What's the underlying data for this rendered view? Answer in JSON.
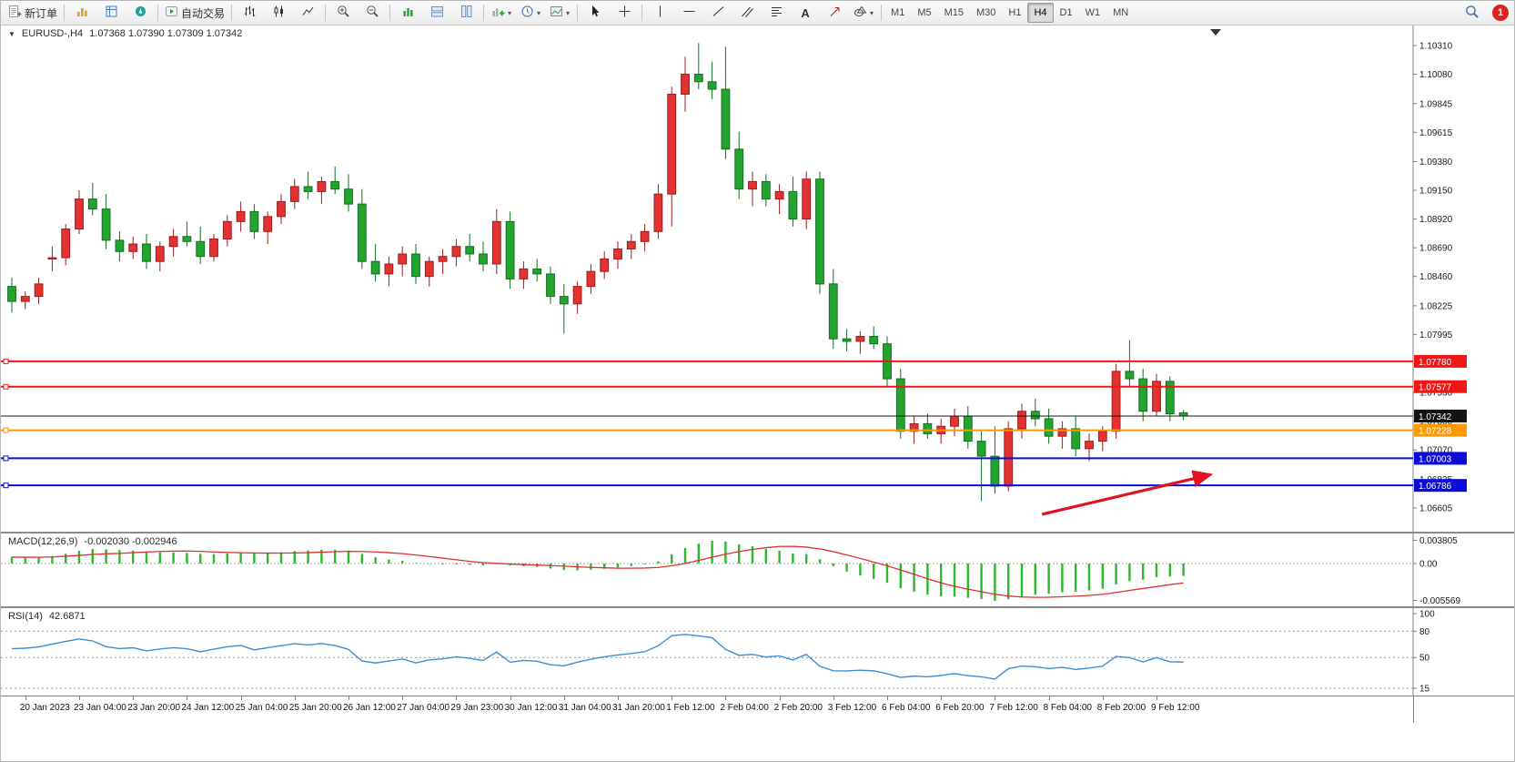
{
  "toolbar": {
    "new_order_label": "新订单",
    "autotrading_label": "自动交易",
    "timeframes": [
      "M1",
      "M5",
      "M15",
      "M30",
      "H1",
      "H4",
      "D1",
      "W1",
      "MN"
    ],
    "active_timeframe": "H4",
    "notification_count": "1"
  },
  "main_pane": {
    "collapse_icon": "▼",
    "symbol_period": "EURUSD-,H4",
    "quotes": "1.07368 1.07390 1.07309 1.07342"
  },
  "macd_pane": {
    "title": "MACD(12,26,9)",
    "values": "-0.002030 -0.002946",
    "axis_labels": [
      "0.003805",
      "0.00",
      "-0.005569"
    ]
  },
  "rsi_pane": {
    "title": "RSI(14)",
    "value": "42.6871",
    "axis_labels": [
      "100",
      "80",
      "50",
      "15"
    ]
  },
  "chart_data": {
    "type": "candlestick",
    "symbol": "EURUSD",
    "period": "H4",
    "y_axis_labels": [
      "1.10310",
      "1.10080",
      "1.09845",
      "1.09615",
      "1.09380",
      "1.09150",
      "1.08920",
      "1.08690",
      "1.08460",
      "1.08225",
      "1.07995",
      "1.07760",
      "1.07530",
      "1.07300",
      "1.07070",
      "1.06835",
      "1.06605"
    ],
    "x_labels": [
      "20 Jan 2023",
      "23 Jan 04:00",
      "23 Jan 20:00",
      "24 Jan 12:00",
      "25 Jan 04:00",
      "25 Jan 20:00",
      "26 Jan 12:00",
      "27 Jan 04:00",
      "29 Jan 23:00",
      "30 Jan 12:00",
      "31 Jan 04:00",
      "31 Jan 20:00",
      "1 Feb 12:00",
      "2 Feb 04:00",
      "2 Feb 20:00",
      "3 Feb 12:00",
      "6 Feb 04:00",
      "6 Feb 20:00",
      "7 Feb 12:00",
      "8 Feb 04:00",
      "8 Feb 20:00",
      "9 Feb 12:00"
    ],
    "candles": [
      [
        1.0838,
        1.0845,
        1.0817,
        1.0826
      ],
      [
        1.0826,
        1.0834,
        1.082,
        1.083
      ],
      [
        1.083,
        1.0845,
        1.0824,
        1.084
      ],
      [
        1.086,
        1.087,
        1.085,
        1.0861
      ],
      [
        1.0861,
        1.0888,
        1.0855,
        1.0884
      ],
      [
        1.0884,
        1.0915,
        1.088,
        1.0908
      ],
      [
        1.0908,
        1.0921,
        1.0895,
        1.09
      ],
      [
        1.09,
        1.0912,
        1.0868,
        1.0875
      ],
      [
        1.0875,
        1.0882,
        1.0858,
        1.0866
      ],
      [
        1.0866,
        1.0878,
        1.086,
        1.0872
      ],
      [
        1.0872,
        1.088,
        1.0852,
        1.0858
      ],
      [
        1.0858,
        1.0874,
        1.085,
        1.087
      ],
      [
        1.087,
        1.0884,
        1.0862,
        1.0878
      ],
      [
        1.0878,
        1.089,
        1.087,
        1.0874
      ],
      [
        1.0874,
        1.0886,
        1.0856,
        1.0862
      ],
      [
        1.0862,
        1.088,
        1.0858,
        1.0876
      ],
      [
        1.0876,
        1.0895,
        1.087,
        1.089
      ],
      [
        1.089,
        1.0906,
        1.0882,
        1.0898
      ],
      [
        1.0898,
        1.0904,
        1.0876,
        1.0882
      ],
      [
        1.0882,
        1.0898,
        1.0872,
        1.0894
      ],
      [
        1.0894,
        1.0912,
        1.0888,
        1.0906
      ],
      [
        1.0906,
        1.0924,
        1.09,
        1.0918
      ],
      [
        1.0918,
        1.093,
        1.0908,
        1.0914
      ],
      [
        1.0914,
        1.0926,
        1.0904,
        1.0922
      ],
      [
        1.0922,
        1.0934,
        1.0912,
        1.0916
      ],
      [
        1.0916,
        1.0928,
        1.0898,
        1.0904
      ],
      [
        1.0904,
        1.0916,
        1.0852,
        1.0858
      ],
      [
        1.0858,
        1.0872,
        1.0842,
        1.0848
      ],
      [
        1.0848,
        1.0862,
        1.0838,
        1.0856
      ],
      [
        1.0856,
        1.087,
        1.0846,
        1.0864
      ],
      [
        1.0864,
        1.0872,
        1.084,
        1.0846
      ],
      [
        1.0846,
        1.0862,
        1.0838,
        1.0858
      ],
      [
        1.0858,
        1.0868,
        1.0848,
        1.0862
      ],
      [
        1.0862,
        1.0876,
        1.0854,
        1.087
      ],
      [
        1.087,
        1.088,
        1.0858,
        1.0864
      ],
      [
        1.0864,
        1.0874,
        1.085,
        1.0856
      ],
      [
        1.0856,
        1.09,
        1.0848,
        1.089
      ],
      [
        1.089,
        1.0898,
        1.0836,
        1.0844
      ],
      [
        1.0844,
        1.0858,
        1.0836,
        1.0852
      ],
      [
        1.0852,
        1.086,
        1.0842,
        1.0848
      ],
      [
        1.0848,
        1.0854,
        1.0824,
        1.083
      ],
      [
        1.083,
        1.084,
        1.08,
        1.0824
      ],
      [
        1.0824,
        1.0842,
        1.0816,
        1.0838
      ],
      [
        1.0838,
        1.0856,
        1.0832,
        1.085
      ],
      [
        1.085,
        1.0866,
        1.0844,
        1.086
      ],
      [
        1.086,
        1.0874,
        1.0852,
        1.0868
      ],
      [
        1.0868,
        1.088,
        1.086,
        1.0874
      ],
      [
        1.0874,
        1.0888,
        1.0866,
        1.0882
      ],
      [
        1.0882,
        1.092,
        1.0876,
        1.0912
      ],
      [
        1.0912,
        1.0998,
        1.0886,
        1.0992
      ],
      [
        1.0992,
        1.1022,
        1.0978,
        1.1008
      ],
      [
        1.1008,
        1.1033,
        1.0996,
        1.1002
      ],
      [
        1.1002,
        1.1018,
        1.0988,
        1.0996
      ],
      [
        1.0996,
        1.103,
        1.094,
        1.0948
      ],
      [
        1.0948,
        1.0962,
        1.0908,
        1.0916
      ],
      [
        1.0916,
        1.093,
        1.0902,
        1.0922
      ],
      [
        1.0922,
        1.0928,
        1.0902,
        1.0908
      ],
      [
        1.0908,
        1.092,
        1.0896,
        1.0914
      ],
      [
        1.0914,
        1.0926,
        1.0886,
        1.0892
      ],
      [
        1.0892,
        1.093,
        1.0884,
        1.0924
      ],
      [
        1.0924,
        1.093,
        1.0832,
        1.084
      ],
      [
        1.084,
        1.0852,
        1.0788,
        1.0796
      ],
      [
        1.0796,
        1.0804,
        1.0786,
        1.0794
      ],
      [
        1.0794,
        1.0802,
        1.0784,
        1.0798
      ],
      [
        1.0798,
        1.0806,
        1.0788,
        1.0792
      ],
      [
        1.0792,
        1.0798,
        1.0758,
        1.0764
      ],
      [
        1.0764,
        1.0772,
        1.0716,
        1.0722
      ],
      [
        1.0722,
        1.0734,
        1.0712,
        1.0728
      ],
      [
        1.0728,
        1.0736,
        1.0716,
        1.072
      ],
      [
        1.072,
        1.0732,
        1.0712,
        1.0726
      ],
      [
        1.0726,
        1.074,
        1.0718,
        1.0734
      ],
      [
        1.0734,
        1.0742,
        1.0708,
        1.0714
      ],
      [
        1.0714,
        1.0722,
        1.0666,
        1.0702
      ],
      [
        1.0702,
        1.0726,
        1.0672,
        1.0678
      ],
      [
        1.0678,
        1.073,
        1.0674,
        1.0724
      ],
      [
        1.0724,
        1.0744,
        1.0716,
        1.0738
      ],
      [
        1.0738,
        1.0748,
        1.0726,
        1.0732
      ],
      [
        1.0732,
        1.074,
        1.0712,
        1.0718
      ],
      [
        1.0718,
        1.073,
        1.0708,
        1.0724
      ],
      [
        1.0724,
        1.0734,
        1.0702,
        1.0708
      ],
      [
        1.0708,
        1.072,
        1.0698,
        1.0714
      ],
      [
        1.0714,
        1.0726,
        1.0706,
        1.0722
      ],
      [
        1.0722,
        1.0776,
        1.0716,
        1.077
      ],
      [
        1.077,
        1.0795,
        1.0758,
        1.0764
      ],
      [
        1.0764,
        1.0772,
        1.073,
        1.0738
      ],
      [
        1.0738,
        1.0768,
        1.0734,
        1.0762
      ],
      [
        1.0762,
        1.0766,
        1.073,
        1.0736
      ],
      [
        1.07368,
        1.0739,
        1.07309,
        1.07342
      ]
    ],
    "horizontal_lines": [
      {
        "price": 1.0778,
        "label": "1.07780",
        "color": "#f01616"
      },
      {
        "price": 1.07577,
        "label": "1.07577",
        "color": "#f01616"
      },
      {
        "price": 1.07228,
        "label": "1.07228",
        "color": "#ff9900"
      },
      {
        "price": 1.07003,
        "label": "1.07003",
        "color": "#0c0cd9"
      },
      {
        "price": 1.06786,
        "label": "1.06786",
        "color": "#0c0cd9"
      }
    ],
    "current_price": {
      "price": 1.07342,
      "label": "1.07342",
      "color": "#1a1a1a"
    },
    "trend_arrow": {
      "from_candle": 76.5,
      "from_price": 1.06554,
      "to_candle": 89.0,
      "to_price": 1.06872,
      "color": "#e01420"
    },
    "colors": {
      "bull": "#e23232",
      "bear": "#22a42e",
      "macd_histogram": "#2db82d",
      "macd_signal": "#e03030",
      "rsi_line": "#3c8fd6"
    },
    "macd_params": {
      "fast": 12,
      "slow": 26,
      "signal": 9
    },
    "rsi_params": {
      "period": 14
    }
  }
}
